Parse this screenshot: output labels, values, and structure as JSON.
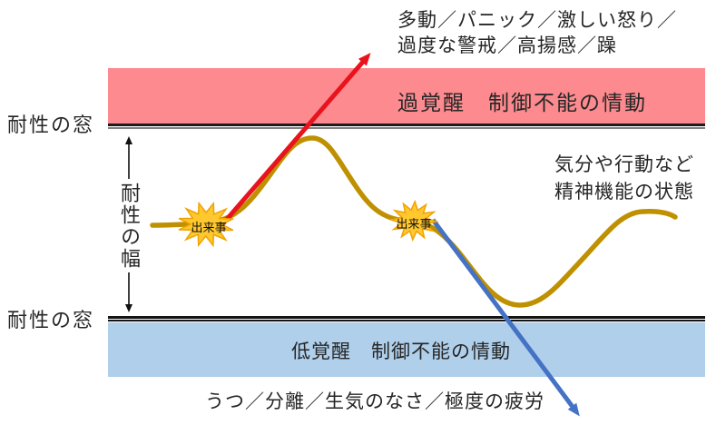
{
  "title": "耐性の窓（Window of Tolerance）図",
  "colors": {
    "pink": "#fc8a8f",
    "lightblue": "#afcfea",
    "curve": "#bf9000",
    "red": "#e8131d",
    "blue": "#4472c4",
    "starfill": "#ffc82e",
    "starstroke": "#f0a202",
    "text": "#262626"
  },
  "labels": {
    "window_top": "耐性の窓",
    "window_bottom": "耐性の窓",
    "tolerance_width": "耐性の幅",
    "hyper_band": "過覚醒　制御不能の情動",
    "hypo_band": "低覚醒　制御不能の情動",
    "hyper_symptoms_line1": "多動／パニック／激しい怒り／",
    "hyper_symptoms_line2": "過度な警戒／高揚感／躁",
    "hypo_symptoms": "うつ／分離／生気のなさ／極度の疲労",
    "curve_state_line1": "気分や行動など",
    "curve_state_line2": "精神機能の状態"
  },
  "events": [
    {
      "label": "出来事"
    },
    {
      "label": "出来事"
    }
  ]
}
